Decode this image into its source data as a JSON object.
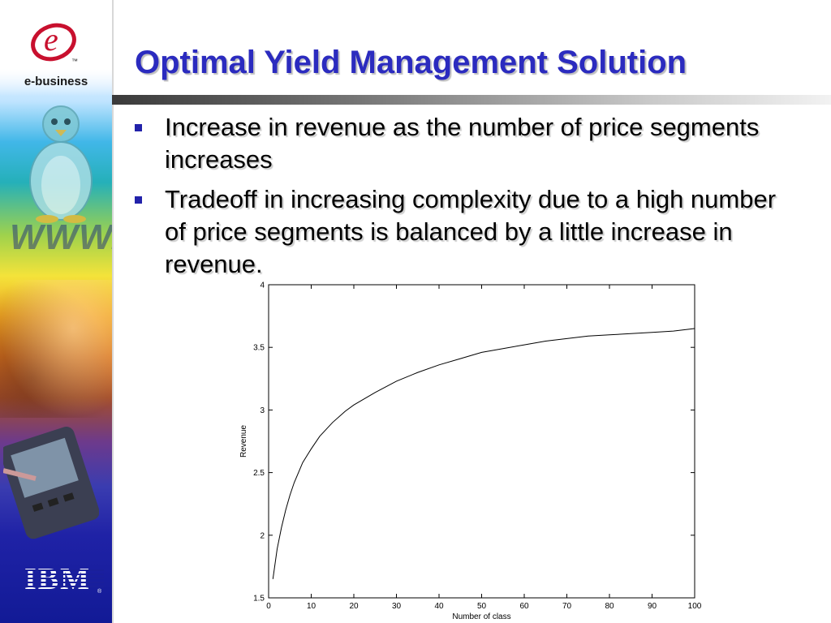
{
  "slide": {
    "title": "Optimal Yield Management Solution",
    "bullets": [
      "Increase in revenue as the number of price segments increases",
      "Tradeoff in increasing complexity due to a high number of price segments is balanced by a little increase in revenue."
    ],
    "accent_color": "#2b2bbf",
    "bullet_color": "#2222aa"
  },
  "sidebar": {
    "logo_letter": "e",
    "trademark": "™",
    "logo_text": "e-business",
    "www_text": "WWW.",
    "brand": "IBM",
    "registered": "®",
    "icons": [
      "e-business-logo",
      "penguin-icon",
      "pda-icon",
      "ibm-logo"
    ]
  },
  "chart_data": {
    "type": "line",
    "title": "",
    "xlabel": "Number of class",
    "ylabel": "Revenue",
    "xlim": [
      0,
      100
    ],
    "ylim": [
      1.5,
      4
    ],
    "xticks": [
      0,
      10,
      20,
      30,
      40,
      50,
      60,
      70,
      80,
      90,
      100
    ],
    "yticks": [
      1.5,
      2,
      2.5,
      3,
      3.5,
      4
    ],
    "grid": false,
    "series": [
      {
        "x": [
          1,
          2,
          3,
          4,
          5,
          6,
          8,
          10,
          12,
          15,
          18,
          20,
          25,
          30,
          35,
          40,
          45,
          50,
          55,
          60,
          65,
          70,
          75,
          80,
          85,
          90,
          95,
          100
        ],
        "y": [
          1.65,
          1.89,
          2.06,
          2.2,
          2.32,
          2.42,
          2.58,
          2.69,
          2.79,
          2.9,
          2.99,
          3.04,
          3.14,
          3.23,
          3.3,
          3.36,
          3.41,
          3.46,
          3.49,
          3.52,
          3.55,
          3.57,
          3.59,
          3.6,
          3.61,
          3.62,
          3.63,
          3.65
        ]
      }
    ]
  }
}
